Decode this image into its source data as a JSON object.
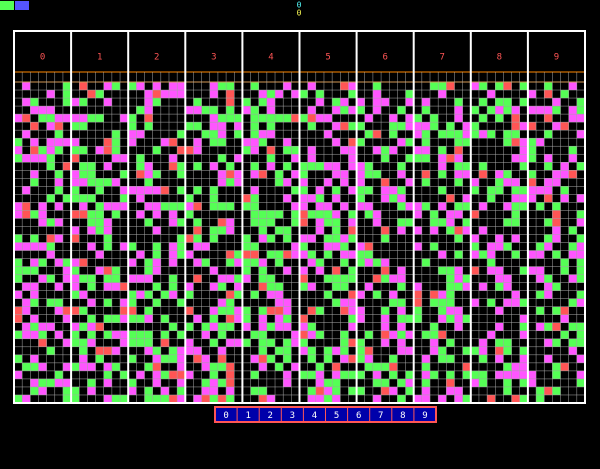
{
  "indicator": [
    "0",
    "0"
  ],
  "columns": [
    "0",
    "1",
    "2",
    "3",
    "4",
    "5",
    "6",
    "7",
    "8",
    "9"
  ],
  "selector": [
    "0",
    "1",
    "2",
    "3",
    "4",
    "5",
    "6",
    "7",
    "8",
    "9"
  ]
}
